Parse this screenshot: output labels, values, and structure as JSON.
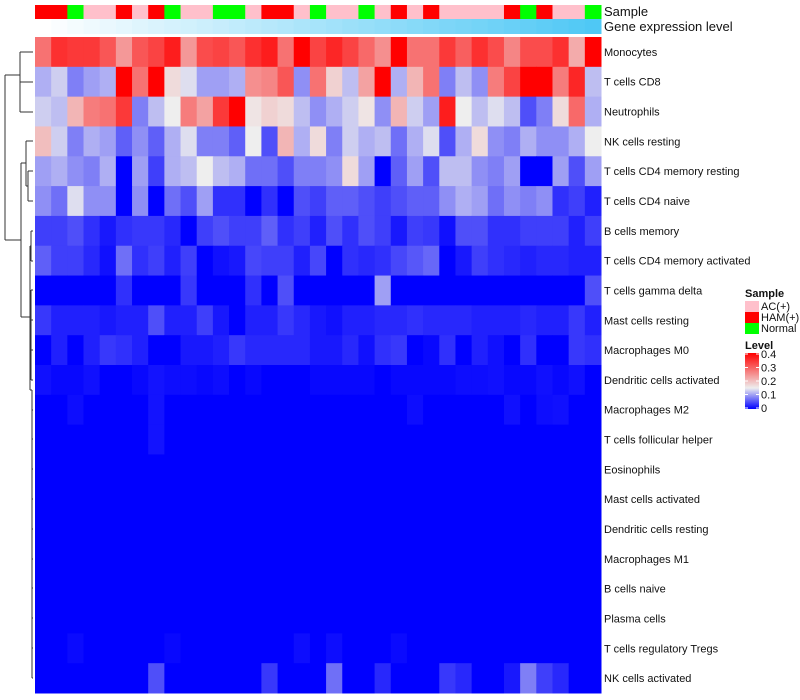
{
  "chart_data": {
    "type": "heatmap",
    "annotation_labels": {
      "sample": "Sample",
      "gene": "Gene expression level"
    },
    "legend": {
      "sample_title": "Sample",
      "sample_groups": [
        {
          "code": "A",
          "label": "AC(+)",
          "color": "#FFC0CB"
        },
        {
          "code": "H",
          "label": "HAM(+)",
          "color": "#FF0000"
        },
        {
          "code": "N",
          "label": "Normal",
          "color": "#00FF00"
        }
      ],
      "level_title": "Level",
      "level_ticks": [
        "0.4",
        "0.3",
        "0.2",
        "0.1",
        "0"
      ],
      "level_range": [
        0,
        0.4
      ],
      "placement": "right"
    },
    "colors": {
      "low": "#0000FF",
      "mid": "#EEEEEE",
      "high": "#FF0000",
      "gene_low": "#FFFFFF",
      "gene_high": "#4FC8F5"
    },
    "samples": [
      "H",
      "H",
      "N",
      "A",
      "A",
      "H",
      "A",
      "H",
      "N",
      "A",
      "A",
      "N",
      "N",
      "A",
      "H",
      "H",
      "A",
      "N",
      "A",
      "A",
      "N",
      "A",
      "H",
      "A",
      "H",
      "A",
      "A",
      "A",
      "A",
      "H",
      "N",
      "H",
      "A",
      "A",
      "N"
    ],
    "gene_expression_level": [
      0,
      0.03,
      0.06,
      0.09,
      0.12,
      0.15,
      0.18,
      0.21,
      0.24,
      0.26,
      0.29,
      0.32,
      0.35,
      0.38,
      0.41,
      0.44,
      0.47,
      0.5,
      0.53,
      0.56,
      0.59,
      0.62,
      0.65,
      0.68,
      0.71,
      0.74,
      0.76,
      0.79,
      0.82,
      0.85,
      0.88,
      0.91,
      0.94,
      0.97,
      1
    ],
    "rows": [
      "Monocytes",
      "T cells CD8",
      "Neutrophils",
      "NK cells resting",
      "T cells CD4 memory resting",
      "T cells CD4 naive",
      "B cells memory",
      "T cells CD4 memory activated",
      "T cells gamma delta",
      "Mast cells resting",
      "Macrophages M0",
      "Dendritic cells activated",
      "Macrophages M2",
      "T cells follicular helper",
      "Eosinophils",
      "Mast cells activated",
      "Dendritic cells resting",
      "Macrophages M1",
      "B cells naive",
      "Plasma cells",
      "T cells regulatory  Tregs",
      "NK cells activated"
    ],
    "values": [
      [
        0.28,
        0.35,
        0.34,
        0.34,
        0.31,
        0.24,
        0.31,
        0.33,
        0.37,
        0.24,
        0.32,
        0.33,
        0.31,
        0.35,
        0.37,
        0.28,
        0.4,
        0.33,
        0.36,
        0.33,
        0.29,
        0.25,
        0.4,
        0.28,
        0.28,
        0.34,
        0.3,
        0.35,
        0.32,
        0.26,
        0.32,
        0.32,
        0.35,
        0.22,
        0.4
      ],
      [
        0.11,
        0.13,
        0.08,
        0.1,
        0.11,
        0.4,
        0.28,
        0.4,
        0.17,
        0.14,
        0.1,
        0.1,
        0.11,
        0.25,
        0.26,
        0.31,
        0.09,
        0.28,
        0.18,
        0.12,
        0.23,
        0.4,
        0.11,
        0.21,
        0.28,
        0.08,
        0.12,
        0.09,
        0.27,
        0.33,
        0.4,
        0.4,
        0.27,
        0.36,
        0.12
      ],
      [
        0.13,
        0.12,
        0.21,
        0.27,
        0.28,
        0.34,
        0.08,
        0.12,
        0.15,
        0.27,
        0.23,
        0.34,
        0.4,
        0.16,
        0.18,
        0.17,
        0.12,
        0.09,
        0.11,
        0.13,
        0.16,
        0.09,
        0.21,
        0.13,
        0.1,
        0.37,
        0.15,
        0.12,
        0.14,
        0.12,
        0.05,
        0.08,
        0.17,
        0.29,
        0.11
      ],
      [
        0.2,
        0.13,
        0.08,
        0.11,
        0.1,
        0.06,
        0.09,
        0.06,
        0.11,
        0.14,
        0.08,
        0.08,
        0.06,
        0.15,
        0.05,
        0.21,
        0.11,
        0.17,
        0.08,
        0.13,
        0.11,
        0.12,
        0.07,
        0.11,
        0.14,
        0.05,
        0.11,
        0.17,
        0.09,
        0.08,
        0.11,
        0.09,
        0.09,
        0.11,
        0.15
      ],
      [
        0.1,
        0.11,
        0.09,
        0.08,
        0.11,
        0,
        0.1,
        0.04,
        0.11,
        0.12,
        0.15,
        0.12,
        0.11,
        0.07,
        0.07,
        0.05,
        0.08,
        0.08,
        0.09,
        0.17,
        0.1,
        0,
        0.06,
        0.1,
        0.05,
        0.12,
        0.12,
        0.09,
        0.08,
        0.1,
        0,
        0,
        0.1,
        0.05,
        0.1
      ],
      [
        0.09,
        0.07,
        0.14,
        0.09,
        0.09,
        0,
        0.09,
        0,
        0.07,
        0.05,
        0.1,
        0.03,
        0.03,
        0,
        0.03,
        0,
        0.05,
        0.04,
        0.06,
        0.06,
        0.05,
        0.04,
        0.05,
        0.06,
        0.06,
        0.09,
        0.11,
        0.1,
        0.07,
        0.09,
        0.08,
        0.09,
        0.03,
        0.04,
        0.02
      ],
      [
        0.04,
        0.04,
        0.05,
        0.03,
        0.015,
        0.03,
        0.035,
        0.035,
        0.025,
        0,
        0.04,
        0.05,
        0.04,
        0.04,
        0.06,
        0.03,
        0.04,
        0.02,
        0.05,
        0.03,
        0.05,
        0.04,
        0.015,
        0.04,
        0.035,
        0.01,
        0.05,
        0.05,
        0.03,
        0.03,
        0.04,
        0.04,
        0.04,
        0.02,
        0.04
      ],
      [
        0.06,
        0.04,
        0.04,
        0.025,
        0.01,
        0.07,
        0.03,
        0.04,
        0.02,
        0.04,
        0,
        0.01,
        0.015,
        0.045,
        0.04,
        0.04,
        0.02,
        0.045,
        0,
        0.03,
        0.025,
        0.03,
        0.045,
        0.055,
        0.065,
        0,
        0.015,
        0.04,
        0.03,
        0.025,
        0.02,
        0.025,
        0.025,
        0.02,
        0.02
      ],
      [
        0,
        0,
        0,
        0,
        0,
        0.03,
        0,
        0,
        0,
        0.035,
        0,
        0,
        0,
        0.03,
        0,
        0.05,
        0,
        0,
        0,
        0,
        0,
        0.1,
        0,
        0,
        0,
        0,
        0,
        0,
        0,
        0,
        0,
        0,
        0,
        0,
        0.05
      ],
      [
        0.035,
        0.02,
        0.02,
        0.02,
        0.015,
        0.02,
        0.02,
        0.05,
        0.02,
        0.02,
        0.04,
        0.015,
        0,
        0.02,
        0.02,
        0.035,
        0.025,
        0.015,
        0.01,
        0.02,
        0.02,
        0.025,
        0.025,
        0.03,
        0.025,
        0.025,
        0.025,
        0.02,
        0.02,
        0.02,
        0.025,
        0.02,
        0.02,
        0.035,
        0.02
      ],
      [
        0,
        0.02,
        0,
        0.02,
        0.035,
        0.03,
        0.02,
        0,
        0,
        0.015,
        0.015,
        0.02,
        0.035,
        0.025,
        0.025,
        0.025,
        0.025,
        0.015,
        0.015,
        0.025,
        0.01,
        0.03,
        0.035,
        0,
        0.005,
        0.03,
        0,
        0.02,
        0.01,
        0,
        0.03,
        0,
        0,
        0.035,
        0.03
      ],
      [
        0.01,
        0.005,
        0.005,
        0.01,
        0,
        0,
        0.005,
        0.012,
        0.008,
        0.008,
        0.005,
        0.008,
        0,
        0.005,
        0,
        0,
        0,
        0.005,
        0.005,
        0.005,
        0.005,
        0,
        0.005,
        0.005,
        0.005,
        0.005,
        0.008,
        0.008,
        0.01,
        0.005,
        0.005,
        0.01,
        0.005,
        0.01,
        0
      ],
      [
        0,
        0,
        0.008,
        0,
        0,
        0,
        0,
        0.012,
        0,
        0,
        0,
        0,
        0,
        0,
        0,
        0,
        0,
        0,
        0,
        0,
        0,
        0,
        0,
        0.008,
        0,
        0,
        0,
        0,
        0,
        0.01,
        0,
        0.008,
        0.01,
        0,
        0
      ],
      [
        0,
        0,
        0,
        0,
        0,
        0,
        0,
        0.012,
        0,
        0,
        0,
        0,
        0,
        0,
        0,
        0,
        0,
        0,
        0,
        0,
        0,
        0,
        0,
        0,
        0,
        0,
        0,
        0,
        0,
        0,
        0,
        0,
        0,
        0,
        0
      ],
      [
        0,
        0,
        0,
        0,
        0,
        0,
        0,
        0,
        0,
        0,
        0,
        0,
        0,
        0,
        0,
        0,
        0,
        0,
        0,
        0,
        0,
        0,
        0,
        0,
        0,
        0,
        0,
        0,
        0,
        0,
        0,
        0,
        0,
        0,
        0
      ],
      [
        0,
        0,
        0,
        0,
        0,
        0,
        0,
        0,
        0,
        0,
        0,
        0,
        0,
        0,
        0,
        0,
        0,
        0,
        0,
        0,
        0,
        0,
        0,
        0,
        0,
        0,
        0,
        0,
        0,
        0,
        0,
        0,
        0,
        0,
        0
      ],
      [
        0,
        0,
        0,
        0,
        0,
        0,
        0,
        0,
        0,
        0,
        0,
        0,
        0,
        0,
        0,
        0,
        0,
        0,
        0,
        0,
        0,
        0,
        0,
        0,
        0,
        0,
        0,
        0,
        0,
        0,
        0,
        0,
        0,
        0,
        0
      ],
      [
        0,
        0,
        0,
        0,
        0,
        0,
        0,
        0,
        0,
        0,
        0,
        0,
        0,
        0,
        0,
        0,
        0,
        0,
        0,
        0,
        0,
        0,
        0,
        0,
        0,
        0,
        0,
        0,
        0,
        0,
        0,
        0,
        0,
        0,
        0
      ],
      [
        0,
        0,
        0,
        0,
        0,
        0,
        0,
        0,
        0,
        0,
        0,
        0,
        0,
        0,
        0,
        0,
        0,
        0,
        0,
        0,
        0,
        0,
        0,
        0,
        0,
        0,
        0,
        0,
        0,
        0,
        0,
        0,
        0,
        0,
        0
      ],
      [
        0,
        0,
        0,
        0,
        0,
        0,
        0,
        0,
        0,
        0,
        0,
        0,
        0,
        0,
        0,
        0,
        0,
        0,
        0,
        0,
        0,
        0,
        0,
        0,
        0,
        0,
        0,
        0,
        0,
        0,
        0,
        0,
        0,
        0,
        0
      ],
      [
        0,
        0,
        0.006,
        0,
        0,
        0,
        0,
        0,
        0.005,
        0,
        0,
        0,
        0,
        0,
        0,
        0,
        0.008,
        0,
        0.008,
        0,
        0,
        0,
        0.006,
        0,
        0,
        0,
        0,
        0,
        0,
        0,
        0,
        0,
        0,
        0,
        0
      ],
      [
        0,
        0,
        0,
        0,
        0,
        0,
        0,
        0.05,
        0,
        0,
        0,
        0,
        0,
        0,
        0.035,
        0,
        0,
        0,
        0.07,
        0,
        0,
        0.025,
        0,
        0,
        0,
        0.035,
        0.025,
        0,
        0,
        0.015,
        0.08,
        0.04,
        0.025,
        0,
        0
      ]
    ]
  }
}
